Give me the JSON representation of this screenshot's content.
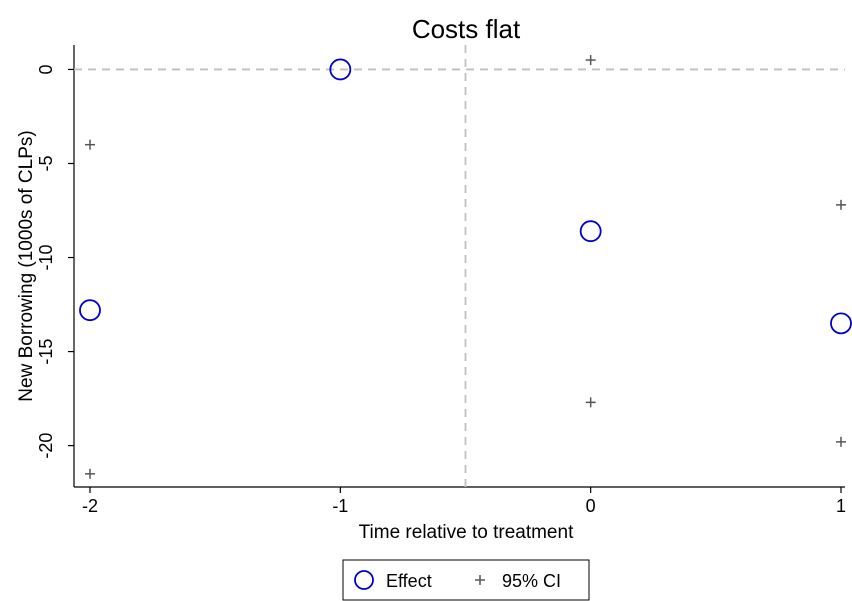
{
  "chart_data": {
    "type": "scatter",
    "title": "Costs flat",
    "xlabel": "Time relative to treatment",
    "ylabel": "New Borrowing (1000s of CLPs)",
    "xlim": [
      -2,
      1
    ],
    "ylim": [
      -22.2,
      1.3
    ],
    "x_ticks": [
      -2,
      -1,
      0,
      1
    ],
    "y_ticks": [
      0,
      -5,
      -10,
      -15,
      -20
    ],
    "grid": false,
    "reference_lines": {
      "y": 0,
      "x": -0.5
    },
    "legend_position": "bottom-center",
    "series": [
      {
        "name": "Effect",
        "marker": "hollow-circle",
        "color": "#0000cc",
        "x": [
          -2,
          -1,
          0,
          1
        ],
        "y": [
          -12.8,
          0,
          -8.6,
          -13.5
        ]
      },
      {
        "name": "95% CI",
        "marker": "plus",
        "color": "#555555",
        "x": [
          -2,
          -2,
          0,
          0,
          1,
          1
        ],
        "y": [
          -4.0,
          -21.5,
          0.5,
          -17.7,
          -7.2,
          -19.8
        ]
      }
    ]
  }
}
